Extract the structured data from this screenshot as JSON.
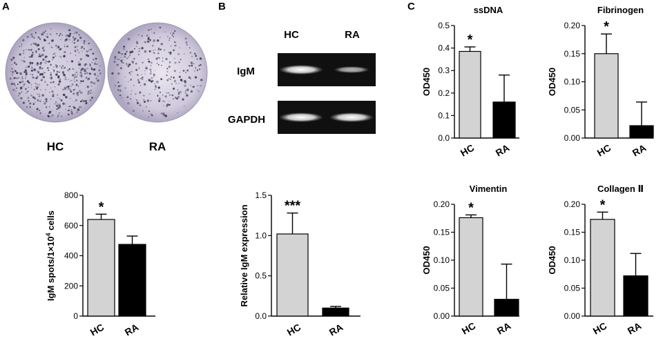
{
  "panels": {
    "a": {
      "letter": "A",
      "wells": [
        {
          "label": "HC",
          "spot_density": "high"
        },
        {
          "label": "RA",
          "spot_density": "low"
        }
      ]
    },
    "b": {
      "letter": "B",
      "gel": {
        "lanes": [
          "HC",
          "RA"
        ],
        "rows": [
          {
            "label": "IgM",
            "band_intensity": [
              1.0,
              0.55
            ]
          },
          {
            "label": "GAPDH",
            "band_intensity": [
              1.0,
              1.0
            ]
          }
        ]
      }
    },
    "c": {
      "letter": "C"
    }
  },
  "colors": {
    "hc_bar": "#d3d3d3",
    "ra_bar": "#000000",
    "gel_background": "#101010",
    "gel_band": "#f2f2f2",
    "well_spot": "#3b3552"
  },
  "chart_data": [
    {
      "id": "chartA",
      "type": "bar",
      "categories": [
        "HC",
        "RA"
      ],
      "values": [
        640,
        475
      ],
      "errors": [
        35,
        55
      ],
      "title": "",
      "xlabel": "",
      "ylabel": "IgM spots/1×10",
      "ylabel_sup": "4",
      "ylabel_tail": " cells",
      "ylim": [
        0,
        800
      ],
      "ticks": [
        0,
        200,
        400,
        600,
        800
      ],
      "tick_labels": [
        "0",
        "200",
        "400",
        "600",
        "800"
      ],
      "significance": [
        "*",
        ""
      ]
    },
    {
      "id": "chartB",
      "type": "bar",
      "categories": [
        "HC",
        "RA"
      ],
      "values": [
        1.02,
        0.1
      ],
      "errors": [
        0.26,
        0.02
      ],
      "title": "",
      "xlabel": "",
      "ylabel": "Relative IgM expression",
      "ylim": [
        0,
        1.5
      ],
      "ticks": [
        0,
        0.5,
        1.0,
        1.5
      ],
      "tick_labels": [
        "0.0",
        "0.5",
        "1.0",
        "1.5"
      ],
      "significance": [
        "***",
        ""
      ]
    },
    {
      "id": "chartC1",
      "type": "bar",
      "categories": [
        "HC",
        "RA"
      ],
      "values": [
        0.385,
        0.16
      ],
      "errors": [
        0.02,
        0.12
      ],
      "title": "ssDNA",
      "xlabel": "",
      "ylabel": "OD450",
      "ylim": [
        0,
        0.5
      ],
      "ticks": [
        0,
        0.1,
        0.2,
        0.3,
        0.4,
        0.5
      ],
      "tick_labels": [
        "0.0",
        "0.1",
        "0.2",
        "0.3",
        "0.4",
        "0.5"
      ],
      "significance": [
        "*",
        ""
      ]
    },
    {
      "id": "chartC2",
      "type": "bar",
      "categories": [
        "HC",
        "RA"
      ],
      "values": [
        0.15,
        0.022
      ],
      "errors": [
        0.035,
        0.042
      ],
      "title": "Fibrinogen",
      "xlabel": "",
      "ylabel": "OD450",
      "ylim": [
        0,
        0.2
      ],
      "ticks": [
        0,
        0.05,
        0.1,
        0.15,
        0.2
      ],
      "tick_labels": [
        "0.00",
        "0.05",
        "0.10",
        "0.15",
        "0.20"
      ],
      "significance": [
        "*",
        ""
      ]
    },
    {
      "id": "chartC3",
      "type": "bar",
      "categories": [
        "HC",
        "RA"
      ],
      "values": [
        0.176,
        0.03
      ],
      "errors": [
        0.005,
        0.063
      ],
      "title": "Vimentin",
      "xlabel": "",
      "ylabel": "OD450",
      "ylim": [
        0,
        0.2
      ],
      "ticks": [
        0,
        0.05,
        0.1,
        0.15,
        0.2
      ],
      "tick_labels": [
        "0.00",
        "0.05",
        "0.10",
        "0.15",
        "0.20"
      ],
      "significance": [
        "*",
        ""
      ]
    },
    {
      "id": "chartC4",
      "type": "bar",
      "categories": [
        "HC",
        "RA"
      ],
      "values": [
        0.173,
        0.072
      ],
      "errors": [
        0.013,
        0.04
      ],
      "title": "Collagen Ⅱ",
      "xlabel": "",
      "ylabel": "OD450",
      "ylim": [
        0,
        0.2
      ],
      "ticks": [
        0,
        0.05,
        0.1,
        0.15,
        0.2
      ],
      "tick_labels": [
        "0.00",
        "0.05",
        "0.10",
        "0.15",
        "0.20"
      ],
      "significance": [
        "*",
        ""
      ]
    }
  ]
}
